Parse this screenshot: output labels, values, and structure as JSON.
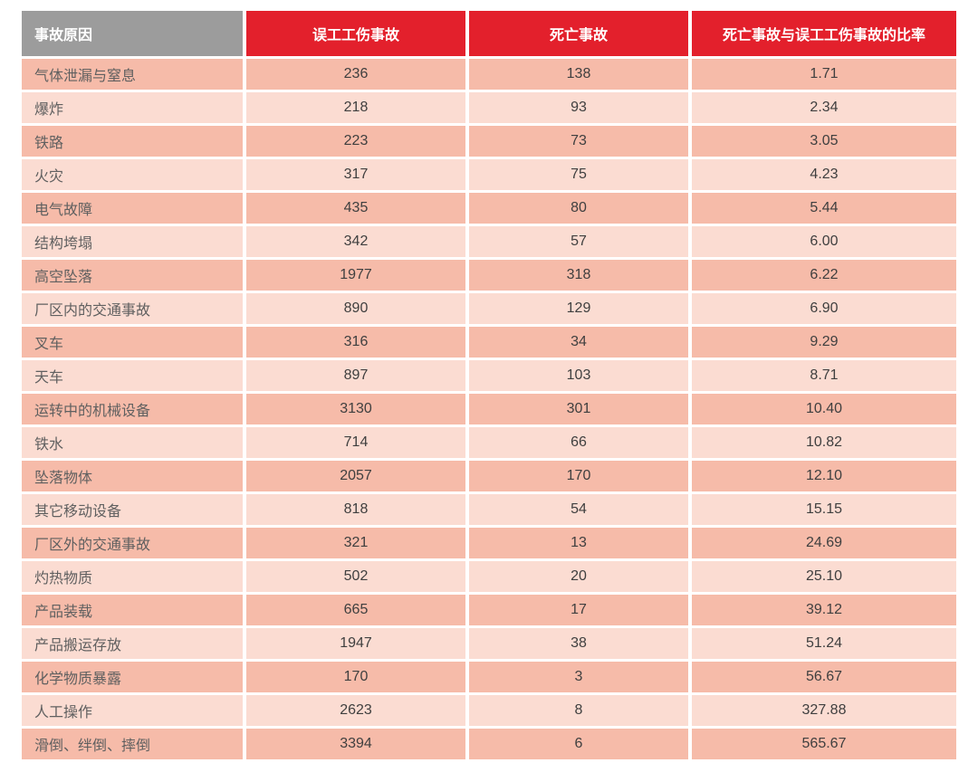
{
  "colors": {
    "header_red": "#e3202c",
    "header_gray": "#9c9c9c",
    "row_dark": "#f6bba9",
    "row_light": "#fbdcd2",
    "header_text": "#ffffff",
    "label_text": "#606060",
    "number_text": "#3f3f3f"
  },
  "chart_data": {
    "type": "table",
    "title": "",
    "columns": [
      "事故原因",
      "误工工伤事故",
      "死亡事故",
      "死亡事故与误工工伤事故的比率"
    ],
    "rows": [
      [
        "气体泄漏与窒息",
        "236",
        "138",
        "1.71"
      ],
      [
        "爆炸",
        "218",
        "93",
        "2.34"
      ],
      [
        "铁路",
        "223",
        "73",
        "3.05"
      ],
      [
        "火灾",
        "317",
        "75",
        "4.23"
      ],
      [
        "电气故障",
        "435",
        "80",
        "5.44"
      ],
      [
        "结构垮塌",
        "342",
        "57",
        "6.00"
      ],
      [
        "高空坠落",
        "1977",
        "318",
        "6.22"
      ],
      [
        "厂区内的交通事故",
        "890",
        "129",
        "6.90"
      ],
      [
        "叉车",
        "316",
        "34",
        "9.29"
      ],
      [
        "天车",
        "897",
        "103",
        "8.71"
      ],
      [
        "运转中的机械设备",
        "3130",
        "301",
        "10.40"
      ],
      [
        "铁水",
        "714",
        "66",
        "10.82"
      ],
      [
        "坠落物体",
        "2057",
        "170",
        "12.10"
      ],
      [
        "其它移动设备",
        "818",
        "54",
        "15.15"
      ],
      [
        "厂区外的交通事故",
        "321",
        "13",
        "24.69"
      ],
      [
        "灼热物质",
        "502",
        "20",
        "25.10"
      ],
      [
        "产品装载",
        "665",
        "17",
        "39.12"
      ],
      [
        "产品搬运存放",
        "1947",
        "38",
        "51.24"
      ],
      [
        "化学物质暴露",
        "170",
        "3",
        "56.67"
      ],
      [
        "人工操作",
        "2623",
        "8",
        "327.88"
      ],
      [
        "滑倒、绊倒、摔倒",
        "3394",
        "6",
        "565.67"
      ]
    ]
  }
}
